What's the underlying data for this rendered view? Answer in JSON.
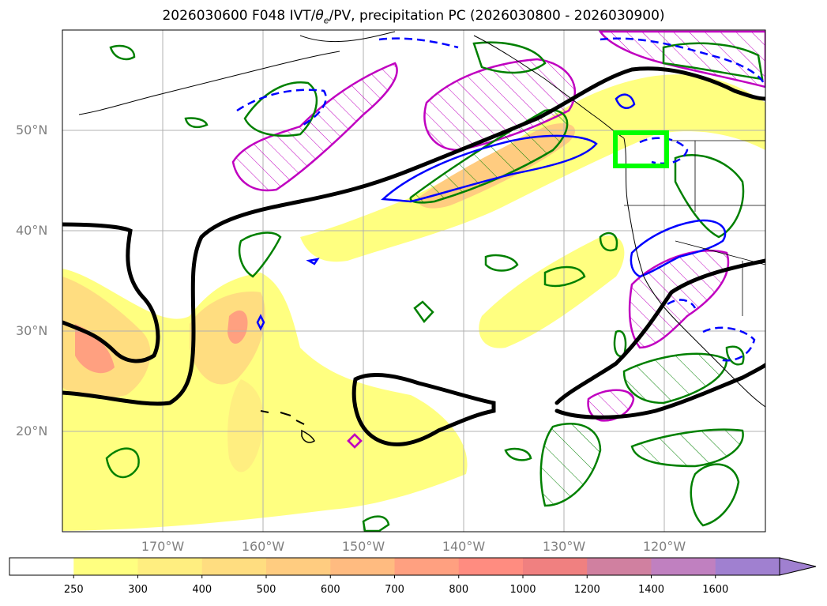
{
  "title": {
    "main": "2026030600 F048 IVT/",
    "theta": "θ",
    "theta_sub": "e",
    "rest": "/PV, precipitation PC (2026030800 - 2026030900)"
  },
  "map": {
    "lat_labels": [
      "50°N",
      "40°N",
      "30°N",
      "20°N"
    ],
    "lon_labels": [
      "170°W",
      "160°W",
      "150°W",
      "140°W",
      "130°W",
      "120°W"
    ],
    "domain": {
      "lon_min": -180,
      "lon_max": -110,
      "lat_min": 10,
      "lat_max": 60
    },
    "gridlines": true,
    "highlight_box": {
      "lon_min": -125,
      "lon_max": -120,
      "lat_min": 47,
      "lat_max": 50,
      "color": "#00ff00"
    }
  },
  "colorbar": {
    "ticks": [
      "250",
      "300",
      "400",
      "500",
      "600",
      "700",
      "800",
      "1000",
      "1200",
      "1400",
      "1600"
    ],
    "colors": [
      "#ffffff",
      "#ffff80",
      "#ffee80",
      "#ffdd80",
      "#ffcc80",
      "#ffbb80",
      "#ffa080",
      "#ff8c80",
      "#f08080",
      "#d080a0",
      "#c080c0",
      "#a080d0"
    ],
    "extend": "max"
  },
  "colors": {
    "ivt_shade": "#ffff80",
    "pv_contour": "#000000",
    "theta_e_solid": "#0000ff",
    "precip_contour": "#008000",
    "pv_hatch": "#c000c0",
    "grid": "#b0b0b0"
  }
}
